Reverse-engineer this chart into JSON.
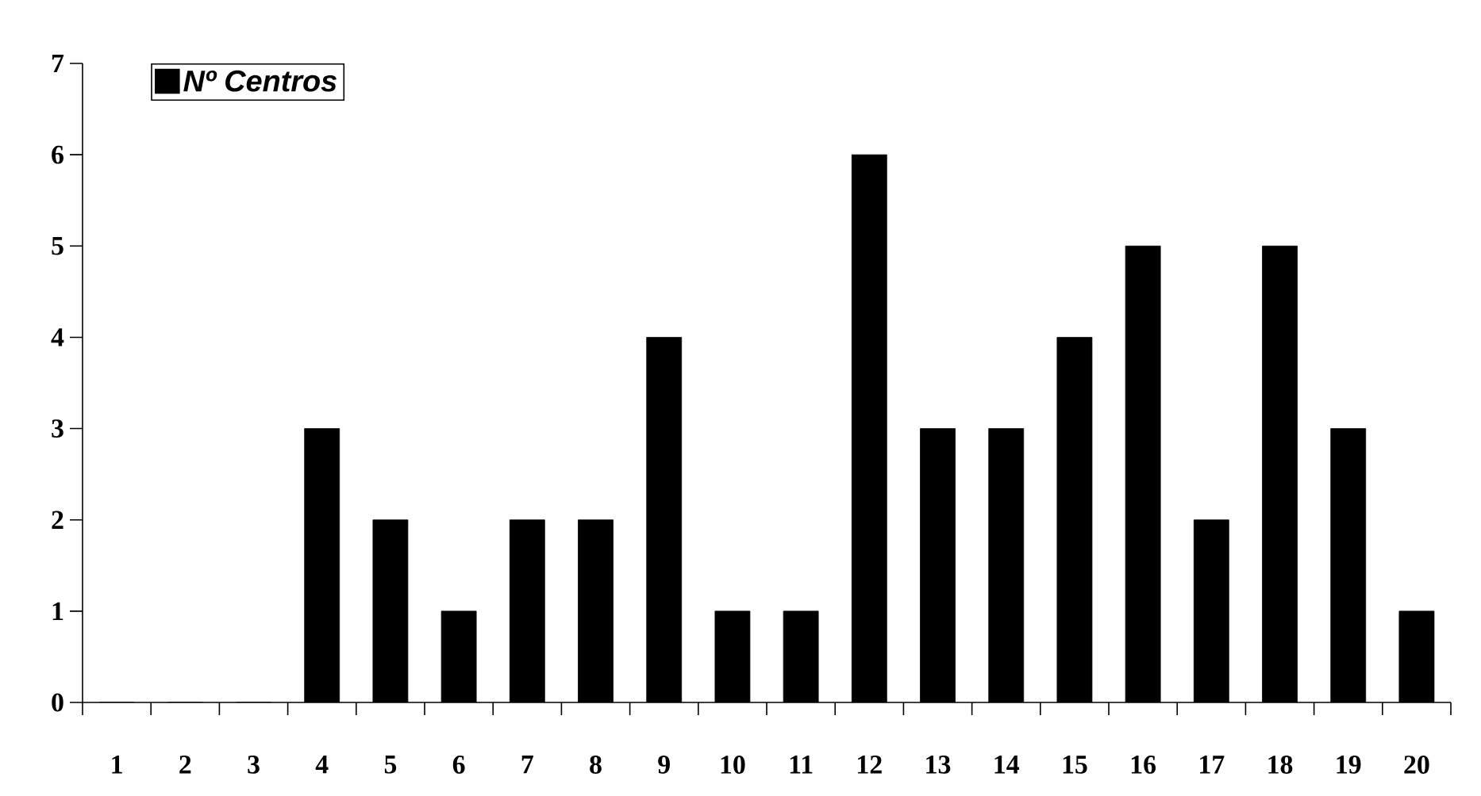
{
  "chart_data": {
    "type": "bar",
    "categories": [
      "1",
      "2",
      "3",
      "4",
      "5",
      "6",
      "7",
      "8",
      "9",
      "10",
      "11",
      "12",
      "13",
      "14",
      "15",
      "16",
      "17",
      "18",
      "19",
      "20"
    ],
    "series": [
      {
        "name": "Nº Centros",
        "color": "#000000",
        "values": [
          0,
          0,
          0,
          3,
          2,
          1,
          2,
          2,
          4,
          1,
          1,
          6,
          3,
          3,
          4,
          5,
          2,
          5,
          3,
          1
        ]
      }
    ],
    "ylim": [
      0,
      7
    ],
    "yticks": [
      0,
      1,
      2,
      3,
      4,
      5,
      6,
      7
    ],
    "legend": "top left",
    "grid": false
  }
}
